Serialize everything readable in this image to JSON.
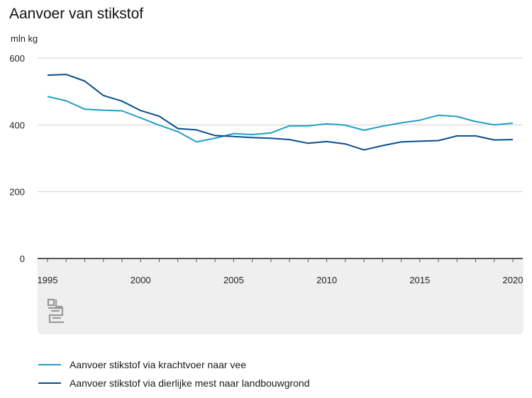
{
  "chart_data": {
    "type": "line",
    "title": "Aanvoer van stikstof",
    "ylabel": "mln kg",
    "xlabel": "",
    "ylim": [
      0,
      600
    ],
    "xlim": [
      1995,
      2020
    ],
    "yticks": [
      "0",
      "200",
      "400",
      "600"
    ],
    "xticks": [
      "1995",
      "2000",
      "2005",
      "2010",
      "2015",
      "2020"
    ],
    "grid": true,
    "legend_position": "bottom",
    "x": [
      1995,
      1996,
      1997,
      1998,
      1999,
      2000,
      2001,
      2002,
      2003,
      2004,
      2005,
      2006,
      2007,
      2008,
      2009,
      2010,
      2011,
      2012,
      2013,
      2014,
      2015,
      2016,
      2017,
      2018,
      2019,
      2020
    ],
    "series": [
      {
        "name": "Aanvoer stikstof via krachtvoer naar vee",
        "color": "#1f9fc4",
        "values": [
          485,
          472,
          447,
          444,
          442,
          421,
          399,
          380,
          349,
          360,
          374,
          371,
          376,
          397,
          397,
          403,
          399,
          384,
          396,
          406,
          414,
          429,
          425,
          410,
          400,
          405
        ]
      },
      {
        "name": "Aanvoer stikstof via dierlijke mest naar landbouwgrond",
        "color": "#0b4c8c",
        "values": [
          549,
          551,
          531,
          488,
          471,
          443,
          426,
          389,
          385,
          368,
          365,
          362,
          360,
          356,
          345,
          350,
          343,
          325,
          338,
          349,
          351,
          353,
          367,
          367,
          355,
          356
        ]
      }
    ]
  }
}
